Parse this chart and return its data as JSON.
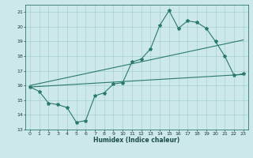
{
  "xlabel": "Humidex (Indice chaleur)",
  "ylabel": "",
  "bg_color": "#cce8e8",
  "grid_color": "#a8d0d0",
  "line_color": "#2a7a6a",
  "xlim": [
    -0.5,
    23.5
  ],
  "ylim": [
    13,
    21.5
  ],
  "yticks": [
    13,
    14,
    15,
    16,
    17,
    18,
    19,
    20,
    21
  ],
  "xticks": [
    0,
    1,
    2,
    3,
    4,
    5,
    6,
    7,
    8,
    9,
    10,
    11,
    12,
    13,
    14,
    15,
    16,
    17,
    18,
    19,
    20,
    21,
    22,
    23
  ],
  "line1_x": [
    0,
    1,
    2,
    3,
    4,
    5,
    6,
    7,
    8,
    9,
    10,
    11,
    12,
    13,
    14,
    15,
    16,
    17,
    18,
    19,
    20,
    21,
    22,
    23
  ],
  "line1_y": [
    15.9,
    15.6,
    14.8,
    14.7,
    14.5,
    13.5,
    13.6,
    15.3,
    15.5,
    16.1,
    16.2,
    17.6,
    17.8,
    18.5,
    20.1,
    21.1,
    19.9,
    20.4,
    20.3,
    19.9,
    19.0,
    18.0,
    16.7,
    16.8
  ],
  "line2_x": [
    0,
    23
  ],
  "line2_y": [
    16.0,
    19.1
  ],
  "line3_x": [
    0,
    23
  ],
  "line3_y": [
    15.9,
    16.75
  ]
}
